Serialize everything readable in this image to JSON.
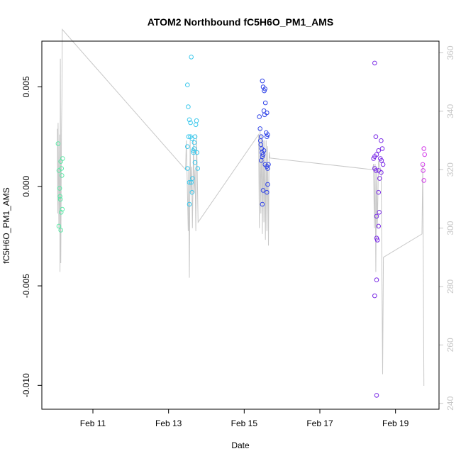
{
  "chart_data": {
    "type": "scatter",
    "title": "ATOM2 Northbound fC5H6O_PM1_AMS",
    "xlabel": "Date",
    "ylabel": "fC5H6O_PM1_AMS",
    "xlim": [
      9.65,
      20.15
    ],
    "ylim": [
      -0.0112,
      0.0073
    ],
    "y2lim": [
      238,
      364
    ],
    "x_ticks": [
      {
        "value": 11,
        "label": "Feb 11"
      },
      {
        "value": 13,
        "label": "Feb 13"
      },
      {
        "value": 15,
        "label": "Feb 15"
      },
      {
        "value": 17,
        "label": "Feb 17"
      },
      {
        "value": 19,
        "label": "Feb 19"
      }
    ],
    "y_ticks": [
      {
        "value": -0.01,
        "label": "-0.010"
      },
      {
        "value": -0.005,
        "label": "-0.005"
      },
      {
        "value": 0.0,
        "label": "0.000"
      },
      {
        "value": 0.005,
        "label": "0.005"
      }
    ],
    "y2_ticks": [
      {
        "value": 240,
        "label": "240"
      },
      {
        "value": 260,
        "label": "260"
      },
      {
        "value": 280,
        "label": "280"
      },
      {
        "value": 300,
        "label": "300"
      },
      {
        "value": 320,
        "label": "320"
      },
      {
        "value": 340,
        "label": "340"
      },
      {
        "value": 360,
        "label": "360"
      }
    ],
    "points": [
      {
        "x": 10.08,
        "y": 0.00215,
        "color": "#5ee8a8"
      },
      {
        "x": 10.1,
        "y": 0.0008,
        "color": "#5ee8a8"
      },
      {
        "x": 10.12,
        "y": -0.0001,
        "color": "#5ee8a8"
      },
      {
        "x": 10.13,
        "y": -0.0005,
        "color": "#5ee8a8"
      },
      {
        "x": 10.14,
        "y": -0.00065,
        "color": "#5ee8a8"
      },
      {
        "x": 10.15,
        "y": 0.00125,
        "color": "#5ee8a8"
      },
      {
        "x": 10.16,
        "y": -0.0013,
        "color": "#5ee8a8"
      },
      {
        "x": 10.17,
        "y": 0.0009,
        "color": "#5ee8a8"
      },
      {
        "x": 10.18,
        "y": 0.00055,
        "color": "#5ee8a8"
      },
      {
        "x": 10.19,
        "y": -0.00115,
        "color": "#5ee8a8"
      },
      {
        "x": 10.2,
        "y": 0.0014,
        "color": "#5ee8a8"
      },
      {
        "x": 10.1,
        "y": -0.002,
        "color": "#5ee8a8"
      },
      {
        "x": 10.15,
        "y": -0.0022,
        "color": "#5ee8a8"
      },
      {
        "x": 13.5,
        "y": 0.0051,
        "color": "#3cc8ec"
      },
      {
        "x": 13.52,
        "y": 0.004,
        "color": "#3cc8ec"
      },
      {
        "x": 13.55,
        "y": 0.00335,
        "color": "#3cc8ec"
      },
      {
        "x": 13.58,
        "y": 0.0032,
        "color": "#3cc8ec"
      },
      {
        "x": 13.6,
        "y": 0.0065,
        "color": "#3cc8ec"
      },
      {
        "x": 13.53,
        "y": 0.0025,
        "color": "#3cc8ec"
      },
      {
        "x": 13.58,
        "y": 0.0025,
        "color": "#3cc8ec"
      },
      {
        "x": 13.62,
        "y": 0.0024,
        "color": "#3cc8ec"
      },
      {
        "x": 13.65,
        "y": 0.0018,
        "color": "#3cc8ec"
      },
      {
        "x": 13.68,
        "y": 0.0022,
        "color": "#3cc8ec"
      },
      {
        "x": 13.7,
        "y": 0.0025,
        "color": "#3cc8ec"
      },
      {
        "x": 13.72,
        "y": 0.0031,
        "color": "#3cc8ec"
      },
      {
        "x": 13.74,
        "y": 0.0033,
        "color": "#3cc8ec"
      },
      {
        "x": 13.5,
        "y": 0.0009,
        "color": "#3cc8ec"
      },
      {
        "x": 13.55,
        "y": 0.0002,
        "color": "#3cc8ec"
      },
      {
        "x": 13.6,
        "y": 0.0002,
        "color": "#3cc8ec"
      },
      {
        "x": 13.63,
        "y": 0.0004,
        "color": "#3cc8ec"
      },
      {
        "x": 13.66,
        "y": 0.0017,
        "color": "#3cc8ec"
      },
      {
        "x": 13.7,
        "y": 0.0012,
        "color": "#3cc8ec"
      },
      {
        "x": 13.75,
        "y": 0.0017,
        "color": "#3cc8ec"
      },
      {
        "x": 13.77,
        "y": 0.0009,
        "color": "#3cc8ec"
      },
      {
        "x": 13.55,
        "y": -0.0009,
        "color": "#3cc8ec"
      },
      {
        "x": 13.62,
        "y": -0.0003,
        "color": "#3cc8ec"
      },
      {
        "x": 13.5,
        "y": 0.002,
        "color": "#3cc8ec"
      },
      {
        "x": 13.68,
        "y": 0.0019,
        "color": "#3cc8ec"
      },
      {
        "x": 15.48,
        "y": 0.0053,
        "color": "#3044e8"
      },
      {
        "x": 15.5,
        "y": 0.005,
        "color": "#3044e8"
      },
      {
        "x": 15.53,
        "y": 0.0048,
        "color": "#3044e8"
      },
      {
        "x": 15.55,
        "y": 0.0049,
        "color": "#3044e8"
      },
      {
        "x": 15.56,
        "y": 0.0042,
        "color": "#3044e8"
      },
      {
        "x": 15.52,
        "y": 0.0038,
        "color": "#3044e8"
      },
      {
        "x": 15.54,
        "y": 0.0036,
        "color": "#3044e8"
      },
      {
        "x": 15.6,
        "y": 0.0037,
        "color": "#3044e8"
      },
      {
        "x": 15.4,
        "y": 0.0035,
        "color": "#3044e8"
      },
      {
        "x": 15.42,
        "y": 0.0029,
        "color": "#3044e8"
      },
      {
        "x": 15.45,
        "y": 0.0025,
        "color": "#3044e8"
      },
      {
        "x": 15.43,
        "y": 0.0023,
        "color": "#3044e8"
      },
      {
        "x": 15.44,
        "y": 0.0021,
        "color": "#3044e8"
      },
      {
        "x": 15.46,
        "y": 0.0019,
        "color": "#3044e8"
      },
      {
        "x": 15.47,
        "y": 0.0017,
        "color": "#3044e8"
      },
      {
        "x": 15.48,
        "y": 0.0015,
        "color": "#3044e8"
      },
      {
        "x": 15.5,
        "y": 0.0016,
        "color": "#3044e8"
      },
      {
        "x": 15.52,
        "y": 0.0018,
        "color": "#3044e8"
      },
      {
        "x": 15.45,
        "y": 0.0013,
        "color": "#3044e8"
      },
      {
        "x": 15.58,
        "y": 0.0027,
        "color": "#3044e8"
      },
      {
        "x": 15.6,
        "y": 0.0025,
        "color": "#3044e8"
      },
      {
        "x": 15.62,
        "y": 0.0026,
        "color": "#3044e8"
      },
      {
        "x": 15.55,
        "y": 0.0011,
        "color": "#3044e8"
      },
      {
        "x": 15.6,
        "y": 0.001,
        "color": "#3044e8"
      },
      {
        "x": 15.62,
        "y": 0.0009,
        "color": "#3044e8"
      },
      {
        "x": 15.64,
        "y": 0.0011,
        "color": "#3044e8"
      },
      {
        "x": 15.5,
        "y": -0.0002,
        "color": "#3044e8"
      },
      {
        "x": 15.62,
        "y": 0.0001,
        "color": "#3044e8"
      },
      {
        "x": 15.6,
        "y": -0.0003,
        "color": "#3044e8"
      },
      {
        "x": 15.48,
        "y": -0.0009,
        "color": "#3044e8"
      },
      {
        "x": 18.45,
        "y": 0.0062,
        "color": "#7a2ae6"
      },
      {
        "x": 18.48,
        "y": 0.0025,
        "color": "#7a2ae6"
      },
      {
        "x": 18.62,
        "y": 0.0023,
        "color": "#7a2ae6"
      },
      {
        "x": 18.55,
        "y": 0.0018,
        "color": "#7a2ae6"
      },
      {
        "x": 18.65,
        "y": 0.0019,
        "color": "#7a2ae6"
      },
      {
        "x": 18.42,
        "y": 0.0014,
        "color": "#7a2ae6"
      },
      {
        "x": 18.45,
        "y": 0.0015,
        "color": "#7a2ae6"
      },
      {
        "x": 18.5,
        "y": 0.0016,
        "color": "#7a2ae6"
      },
      {
        "x": 18.6,
        "y": 0.0014,
        "color": "#7a2ae6"
      },
      {
        "x": 18.63,
        "y": 0.0013,
        "color": "#7a2ae6"
      },
      {
        "x": 18.67,
        "y": 0.0011,
        "color": "#7a2ae6"
      },
      {
        "x": 18.45,
        "y": 0.0009,
        "color": "#7a2ae6"
      },
      {
        "x": 18.48,
        "y": 0.0008,
        "color": "#7a2ae6"
      },
      {
        "x": 18.55,
        "y": 0.0008,
        "color": "#7a2ae6"
      },
      {
        "x": 18.62,
        "y": 0.0007,
        "color": "#7a2ae6"
      },
      {
        "x": 18.58,
        "y": 0.0004,
        "color": "#7a2ae6"
      },
      {
        "x": 18.55,
        "y": -0.0003,
        "color": "#7a2ae6"
      },
      {
        "x": 18.5,
        "y": -0.0015,
        "color": "#7a2ae6"
      },
      {
        "x": 18.57,
        "y": -0.0013,
        "color": "#7a2ae6"
      },
      {
        "x": 18.55,
        "y": -0.002,
        "color": "#7a2ae6"
      },
      {
        "x": 18.5,
        "y": -0.0026,
        "color": "#7a2ae6"
      },
      {
        "x": 18.52,
        "y": -0.0027,
        "color": "#7a2ae6"
      },
      {
        "x": 18.5,
        "y": -0.0047,
        "color": "#7a2ae6"
      },
      {
        "x": 18.45,
        "y": -0.0055,
        "color": "#7a2ae6"
      },
      {
        "x": 18.5,
        "y": -0.0105,
        "color": "#7a2ae6"
      },
      {
        "x": 19.75,
        "y": 0.0019,
        "color": "#d23ae8"
      },
      {
        "x": 19.77,
        "y": 0.0016,
        "color": "#d23ae8"
      },
      {
        "x": 19.72,
        "y": 0.0011,
        "color": "#d23ae8"
      },
      {
        "x": 19.73,
        "y": 0.0008,
        "color": "#d23ae8"
      },
      {
        "x": 19.75,
        "y": 0.0003,
        "color": "#d23ae8"
      }
    ],
    "secondary_line": {
      "color": "#c8c8c8",
      "points": [
        [
          10.06,
          334
        ],
        [
          10.07,
          305
        ],
        [
          10.08,
          336
        ],
        [
          10.09,
          318
        ],
        [
          10.1,
          300
        ],
        [
          10.12,
          332
        ],
        [
          10.13,
          285
        ],
        [
          10.14,
          358
        ],
        [
          10.15,
          288
        ],
        [
          10.17,
          334
        ],
        [
          10.18,
          345
        ],
        [
          10.19,
          368
        ],
        [
          13.45,
          320
        ],
        [
          13.47,
          330
        ],
        [
          13.49,
          318
        ],
        [
          13.52,
          299
        ],
        [
          13.53,
          320
        ],
        [
          13.55,
          283
        ],
        [
          13.57,
          330
        ],
        [
          13.59,
          312
        ],
        [
          13.61,
          321
        ],
        [
          13.63,
          300
        ],
        [
          13.66,
          330
        ],
        [
          13.68,
          312
        ],
        [
          13.7,
          320
        ],
        [
          13.72,
          299
        ],
        [
          13.74,
          332
        ],
        [
          13.76,
          318
        ],
        [
          13.78,
          302
        ],
        [
          15.38,
          332
        ],
        [
          15.4,
          300
        ],
        [
          15.42,
          334
        ],
        [
          15.44,
          305
        ],
        [
          15.46,
          332
        ],
        [
          15.48,
          298
        ],
        [
          15.5,
          330
        ],
        [
          15.52,
          302
        ],
        [
          15.54,
          330
        ],
        [
          15.56,
          296
        ],
        [
          15.58,
          330
        ],
        [
          15.6,
          299
        ],
        [
          15.62,
          328
        ],
        [
          15.64,
          294
        ],
        [
          15.66,
          326
        ],
        [
          15.68,
          324
        ],
        [
          18.4,
          320
        ],
        [
          18.42,
          322
        ],
        [
          18.44,
          300
        ],
        [
          18.46,
          322
        ],
        [
          18.48,
          285
        ],
        [
          18.5,
          321
        ],
        [
          18.52,
          300
        ],
        [
          18.55,
          323
        ],
        [
          18.58,
          321
        ],
        [
          18.62,
          320
        ],
        [
          18.66,
          250
        ],
        [
          18.68,
          290
        ],
        [
          19.7,
          298
        ],
        [
          19.72,
          322
        ],
        [
          19.75,
          246
        ]
      ]
    },
    "grid": false,
    "legend": "none"
  }
}
